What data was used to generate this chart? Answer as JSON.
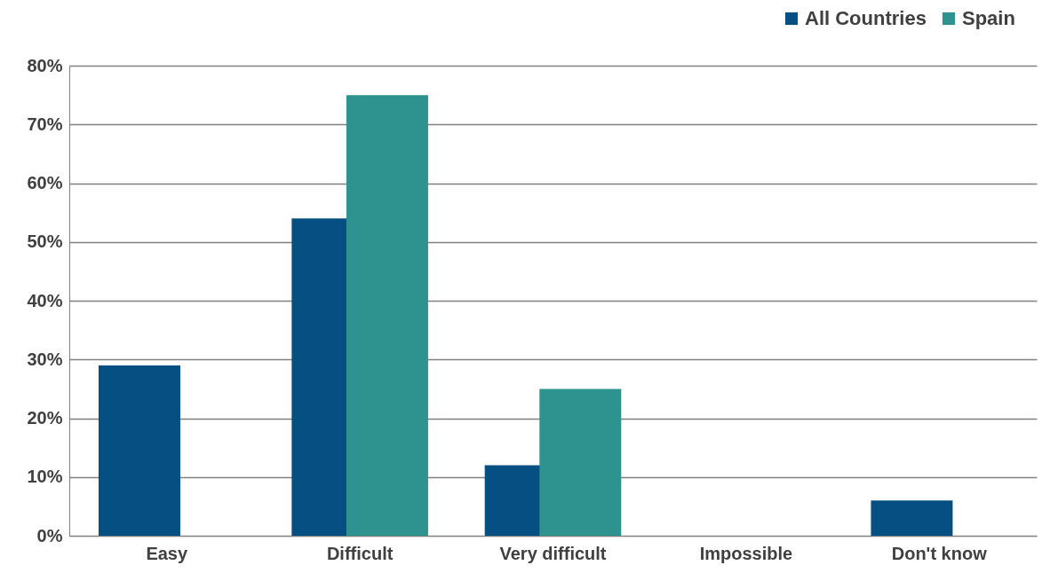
{
  "chart_data": {
    "type": "bar",
    "categories": [
      "Easy",
      "Difficult",
      "Very difficult",
      "Impossible",
      "Don't know"
    ],
    "series": [
      {
        "name": "All Countries",
        "color": "#054f82",
        "values": [
          29,
          54,
          12,
          0,
          6
        ]
      },
      {
        "name": "Spain",
        "color": "#2e938e",
        "values": [
          0,
          75,
          25,
          0,
          0
        ]
      }
    ],
    "ylim": [
      0,
      80
    ],
    "yticks": [
      {
        "value": 0,
        "label": "0%"
      },
      {
        "value": 10,
        "label": "10%"
      },
      {
        "value": 20,
        "label": "20%"
      },
      {
        "value": 30,
        "label": "30%"
      },
      {
        "value": 40,
        "label": "40%"
      },
      {
        "value": 50,
        "label": "50%"
      },
      {
        "value": 60,
        "label": "60%"
      },
      {
        "value": 70,
        "label": "70%"
      },
      {
        "value": 80,
        "label": "80%"
      }
    ],
    "grid": "y",
    "legend": "top right"
  }
}
